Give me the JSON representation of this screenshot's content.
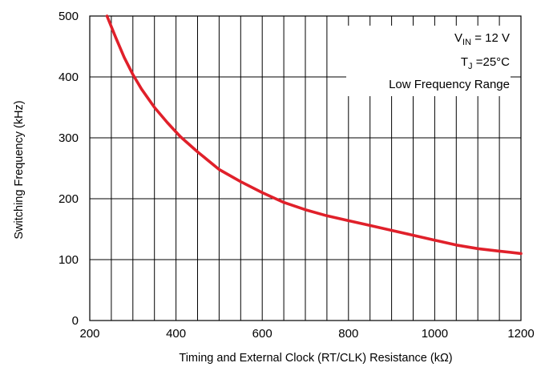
{
  "chart_data": {
    "type": "line",
    "title": "",
    "xlabel": "Timing and External Clock   (RT/CLK) Resistance  (kΩ)",
    "ylabel": "Switching Frequency (kHz)",
    "xlim": [
      200,
      1200
    ],
    "ylim": [
      0,
      500
    ],
    "xticks": [
      200,
      400,
      600,
      800,
      1000,
      1200
    ],
    "yticks": [
      0,
      100,
      200,
      300,
      400,
      500
    ],
    "grid": true,
    "series": [
      {
        "color": "#e0202a",
        "x": [
          240,
          260,
          280,
          300,
          320,
          350,
          380,
          410,
          450,
          500,
          550,
          600,
          650,
          700,
          750,
          800,
          850,
          900,
          950,
          1000,
          1050,
          1100,
          1150,
          1200
        ],
        "y": [
          500,
          465,
          432,
          404,
          380,
          350,
          325,
          302,
          277,
          248,
          228,
          210,
          194,
          182,
          172,
          164,
          156,
          148,
          140,
          132,
          124,
          118,
          114,
          110
        ]
      }
    ],
    "annotations": {
      "vin_prefix": "V",
      "vin_sub": "IN",
      "vin_rest": " = 12 V",
      "tj_prefix": "T",
      "tj_sub": "J",
      "tj_rest": " =25°C",
      "range": "Low Frequency Range"
    }
  }
}
